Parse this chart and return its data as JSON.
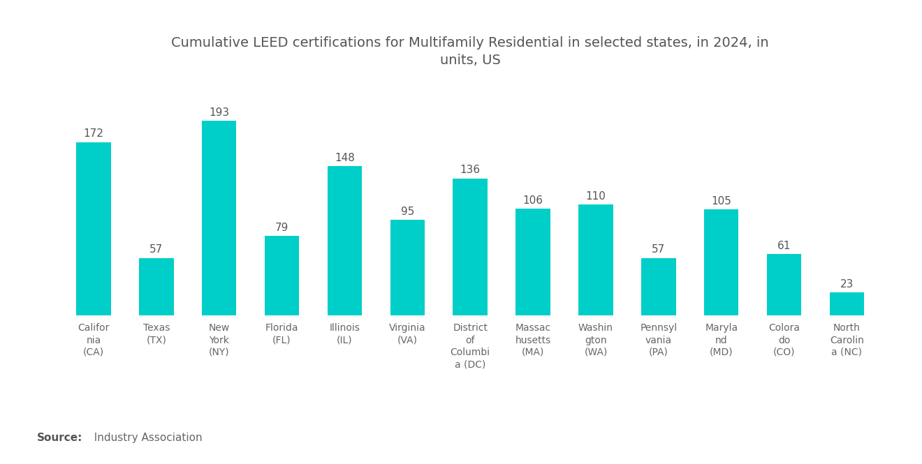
{
  "title": "Cumulative LEED certifications for Multifamily Residential in selected states, in 2024, in\nunits, US",
  "categories": [
    "Califor\nnia\n(CA)",
    "Texas\n(TX)",
    "New\nYork\n(NY)",
    "Florida\n(FL)",
    "Illinois\n(IL)",
    "Virginia\n(VA)",
    "District\nof\nColumbi\na (DC)",
    "Massac\nhusetts\n(MA)",
    "Washin\ngton\n(WA)",
    "Pennsyl\nvania\n(PA)",
    "Maryla\nnd\n(MD)",
    "Colora\ndo\n(CO)",
    "North\nCarolin\na (NC)"
  ],
  "values": [
    172,
    57,
    193,
    79,
    148,
    95,
    136,
    106,
    110,
    57,
    105,
    61,
    23
  ],
  "bar_color": "#00CEC8",
  "background_color": "#ffffff",
  "source_label": "Source:",
  "source_rest": "  Industry Association",
  "title_fontsize": 14,
  "label_fontsize": 10,
  "value_fontsize": 11,
  "source_fontsize": 11,
  "ylim": [
    0,
    230
  ]
}
